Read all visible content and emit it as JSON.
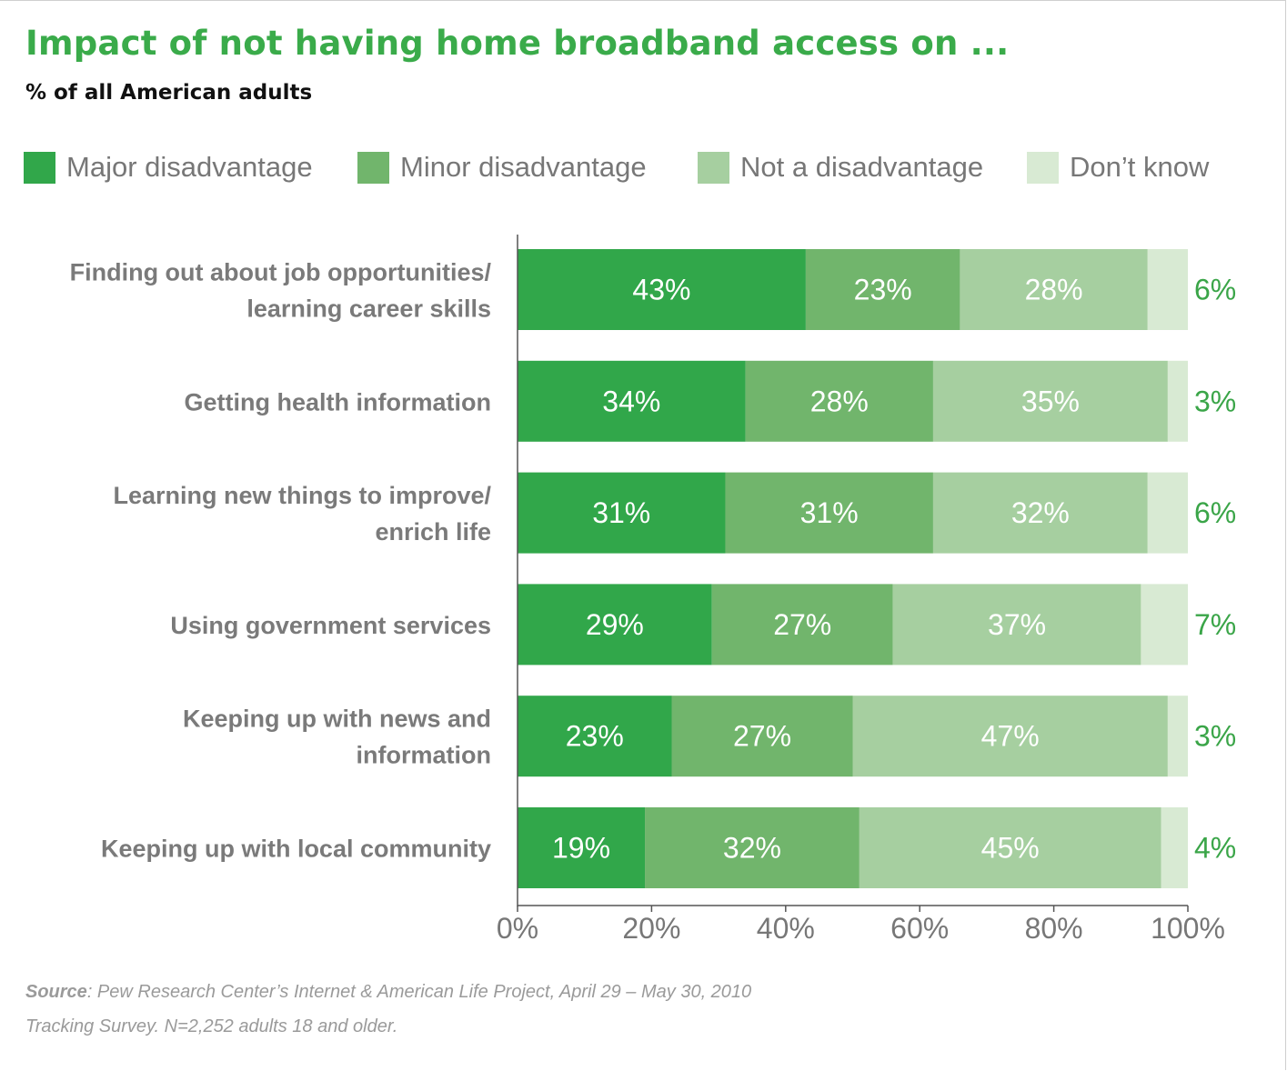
{
  "title": "Impact of not having home broadband access on ...",
  "subtitle": "% of all American adults",
  "source": {
    "label": "Source",
    "line1": ": Pew Research Center’s Internet & American Life Project, April 29 – May 30, 2010",
    "line2": "Tracking Survey. N=2,252 adults 18 and older."
  },
  "colors": {
    "major": "#31a74a",
    "minor": "#71b56c",
    "not": "#a6cfa0",
    "dontknow": "#d8ead3",
    "title": "#3aab4a"
  },
  "chart_data": {
    "type": "bar",
    "orientation": "horizontal",
    "stacked": true,
    "title": "Impact of not having home broadband access on ...",
    "subtitle": "% of all American adults",
    "categories": [
      [
        "Finding out about job opportunities/",
        "learning career skills"
      ],
      [
        "Getting health information"
      ],
      [
        "Learning new things to improve/",
        "enrich life"
      ],
      [
        "Using government services"
      ],
      [
        "Keeping up with news and",
        "information"
      ],
      [
        "Keeping up with local community"
      ]
    ],
    "series": [
      {
        "name": "Major disadvantage",
        "color": "#31a74a",
        "values": [
          43,
          34,
          31,
          29,
          23,
          19
        ],
        "labels": [
          "43%",
          "34%",
          "31%",
          "29%",
          "23%",
          "19%"
        ]
      },
      {
        "name": "Minor disadvantage",
        "color": "#71b56c",
        "values": [
          23,
          28,
          31,
          27,
          27,
          32
        ],
        "labels": [
          "23%",
          "28%",
          "31%",
          "27%",
          "27%",
          "32%"
        ]
      },
      {
        "name": "Not a disadvantage",
        "color": "#a6cfa0",
        "values": [
          28,
          35,
          32,
          37,
          47,
          45
        ],
        "labels": [
          "28%",
          "35%",
          "32%",
          "37%",
          "47%",
          "45%"
        ]
      },
      {
        "name": "Don’t know",
        "color": "#d8ead3",
        "values": [
          6,
          3,
          6,
          7,
          3,
          4
        ],
        "labels": [
          "6%",
          "3%",
          "6%",
          "7%",
          "3%",
          "4%"
        ]
      }
    ],
    "xlim": [
      0,
      100
    ],
    "xticks": [
      0,
      20,
      40,
      60,
      80,
      100
    ],
    "xtick_labels": [
      "0%",
      "20%",
      "40%",
      "60%",
      "80%",
      "100%"
    ],
    "legend_position": "top",
    "grid": false
  }
}
